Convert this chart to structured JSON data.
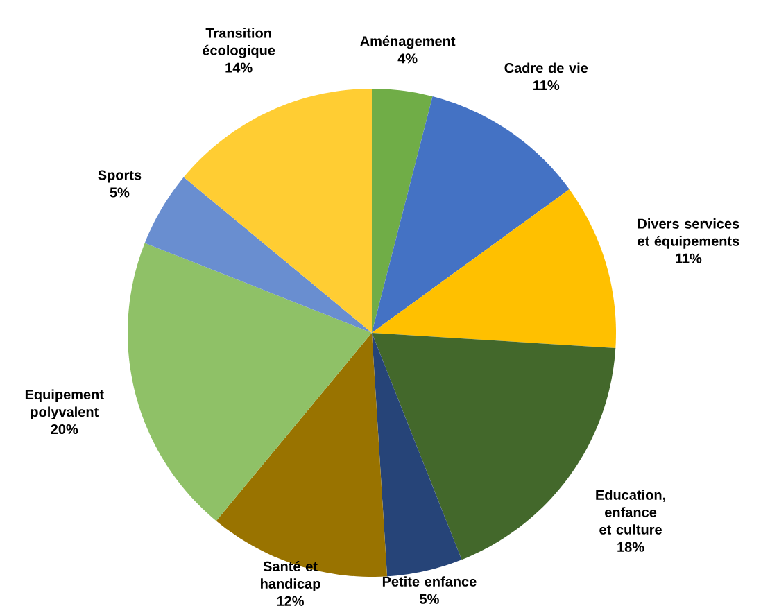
{
  "chart_data": {
    "type": "pie",
    "categories": [
      "Aménagement",
      "Cadre de vie",
      "Divers services et équipements",
      "Education, enfance et culture",
      "Petite enfance",
      "Santé et handicap",
      "Equipement polyvalent",
      "Sports",
      "Transition écologique"
    ],
    "values": [
      4,
      11,
      11,
      18,
      5,
      12,
      20,
      5,
      14
    ],
    "value_labels": [
      "4%",
      "11%",
      "11%",
      "18%",
      "5%",
      "12%",
      "20%",
      "5%",
      "14%"
    ],
    "colors": [
      "#70ad47",
      "#4472c4",
      "#ffc000",
      "#43682b",
      "#264478",
      "#997300",
      "#8fc167",
      "#698ed0",
      "#ffcd33"
    ]
  }
}
